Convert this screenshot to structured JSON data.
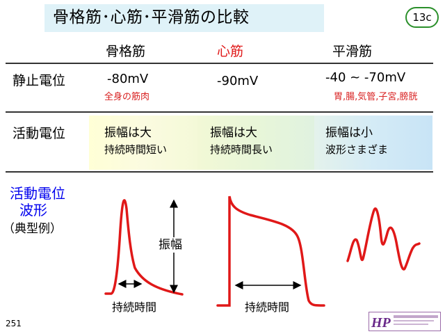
{
  "header": {
    "title": "骨格筋･心筋･平滑筋の比較",
    "slide_code": "13c"
  },
  "columns": {
    "skeletal": "骨格筋",
    "cardiac": "心筋",
    "smooth": "平滑筋"
  },
  "rows": {
    "resting_potential": {
      "label": "静止電位",
      "skeletal": "-80mV",
      "skeletal_note": "全身の筋肉",
      "cardiac": "-90mV",
      "smooth": "-40 ~ -70mV",
      "smooth_note": "胃,腸,気管,子宮,膀胱"
    },
    "action_potential": {
      "label": "活動電位",
      "skeletal_amp": "振幅は大",
      "skeletal_dur": "持続時間短い",
      "cardiac_amp": "振幅は大",
      "cardiac_dur": "持続時間長い",
      "smooth_amp": "振幅は小",
      "smooth_dur": "波形さまざま"
    }
  },
  "waveform": {
    "label_line1": "活動電位",
    "label_line2": "波形",
    "label_sub": "（典型例）",
    "amplitude_label": "振幅",
    "duration_label": "持続時間",
    "wave_color": "#e01818"
  },
  "footer": {
    "page_number": "251",
    "logo_text": "HP"
  },
  "colors": {
    "cardiac_header": "#e01818",
    "wave_label": "#0000ee",
    "title_bg": "#dff2f8",
    "badge_border": "#2a8f2a"
  }
}
